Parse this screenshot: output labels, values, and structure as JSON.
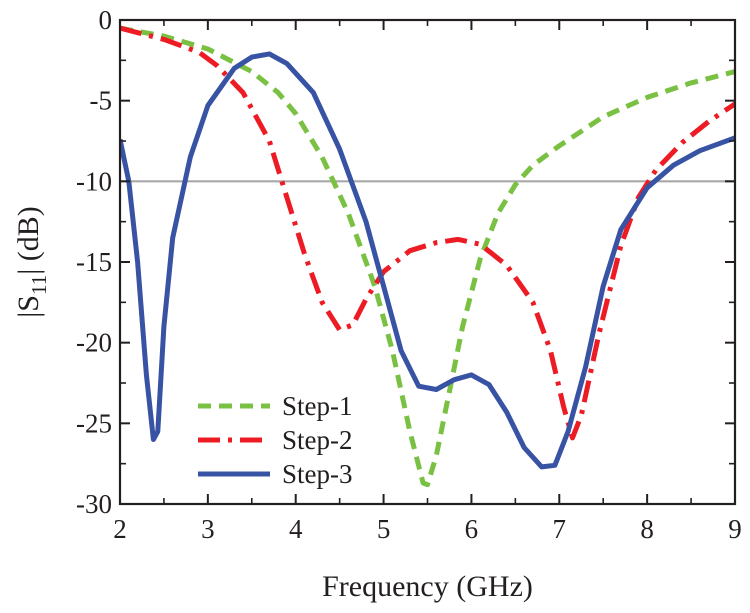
{
  "chart_data": {
    "type": "line",
    "title": "",
    "xlabel": "Frequency (GHz)",
    "ylabel": {
      "prefix": "|S",
      "subscript": "11",
      "suffix": "| (dB)"
    },
    "xlim": [
      2,
      9
    ],
    "ylim": [
      -30,
      0
    ],
    "xticks": [
      2,
      3,
      4,
      5,
      6,
      7,
      8,
      9
    ],
    "yticks": [
      0,
      -5,
      -10,
      -15,
      -20,
      -25,
      -30
    ],
    "xtick_labels": [
      "2",
      "3",
      "4",
      "5",
      "6",
      "7",
      "8",
      "9"
    ],
    "ytick_labels": [
      "0",
      "-5",
      "-10",
      "-15",
      "-20",
      "-25",
      "-30"
    ],
    "reference_line": {
      "y": -10,
      "color": "#a8a8a8"
    },
    "legend_position": "bottom-left",
    "series": [
      {
        "name": "Step-1",
        "color": "#7ac143",
        "style": "dashed",
        "points": [
          [
            2.0,
            -0.5
          ],
          [
            2.5,
            -1.0
          ],
          [
            3.0,
            -1.8
          ],
          [
            3.5,
            -3.2
          ],
          [
            3.8,
            -4.5
          ],
          [
            4.0,
            -5.8
          ],
          [
            4.3,
            -8.5
          ],
          [
            4.6,
            -12.0
          ],
          [
            4.9,
            -16.5
          ],
          [
            5.1,
            -20.5
          ],
          [
            5.3,
            -25.5
          ],
          [
            5.45,
            -28.7
          ],
          [
            5.5,
            -28.8
          ],
          [
            5.6,
            -27.0
          ],
          [
            5.75,
            -23.0
          ],
          [
            5.9,
            -19.0
          ],
          [
            6.1,
            -14.8
          ],
          [
            6.3,
            -12.0
          ],
          [
            6.5,
            -10.2
          ],
          [
            6.7,
            -9.0
          ],
          [
            7.0,
            -7.8
          ],
          [
            7.5,
            -6.0
          ],
          [
            8.0,
            -4.8
          ],
          [
            8.5,
            -3.9
          ],
          [
            9.0,
            -3.2
          ]
        ]
      },
      {
        "name": "Step-2",
        "color": "#ed1c24",
        "style": "dashdot",
        "points": [
          [
            2.0,
            -0.5
          ],
          [
            2.5,
            -1.2
          ],
          [
            2.9,
            -2.0
          ],
          [
            3.1,
            -2.8
          ],
          [
            3.4,
            -4.5
          ],
          [
            3.7,
            -7.5
          ],
          [
            3.9,
            -11.0
          ],
          [
            4.1,
            -14.5
          ],
          [
            4.3,
            -17.5
          ],
          [
            4.5,
            -19.2
          ],
          [
            4.65,
            -18.9
          ],
          [
            4.8,
            -17.3
          ],
          [
            5.0,
            -15.6
          ],
          [
            5.3,
            -14.3
          ],
          [
            5.6,
            -13.8
          ],
          [
            5.85,
            -13.6
          ],
          [
            6.1,
            -13.9
          ],
          [
            6.4,
            -15.2
          ],
          [
            6.7,
            -17.5
          ],
          [
            6.9,
            -20.5
          ],
          [
            7.05,
            -24.0
          ],
          [
            7.15,
            -25.9
          ],
          [
            7.25,
            -24.5
          ],
          [
            7.45,
            -19.5
          ],
          [
            7.7,
            -14.0
          ],
          [
            7.9,
            -11.0
          ],
          [
            8.1,
            -9.3
          ],
          [
            8.4,
            -7.6
          ],
          [
            8.7,
            -6.3
          ],
          [
            9.0,
            -5.2
          ]
        ]
      },
      {
        "name": "Step-3",
        "color": "#3853a4",
        "style": "solid",
        "points": [
          [
            2.0,
            -7.4
          ],
          [
            2.1,
            -10.0
          ],
          [
            2.2,
            -15.0
          ],
          [
            2.3,
            -22.0
          ],
          [
            2.38,
            -26.0
          ],
          [
            2.43,
            -25.5
          ],
          [
            2.5,
            -19.0
          ],
          [
            2.6,
            -13.5
          ],
          [
            2.8,
            -8.5
          ],
          [
            3.0,
            -5.3
          ],
          [
            3.3,
            -3.0
          ],
          [
            3.5,
            -2.3
          ],
          [
            3.7,
            -2.1
          ],
          [
            3.9,
            -2.7
          ],
          [
            4.2,
            -4.5
          ],
          [
            4.5,
            -8.0
          ],
          [
            4.8,
            -12.5
          ],
          [
            5.0,
            -16.5
          ],
          [
            5.2,
            -20.5
          ],
          [
            5.4,
            -22.7
          ],
          [
            5.6,
            -22.9
          ],
          [
            5.8,
            -22.3
          ],
          [
            6.0,
            -22.0
          ],
          [
            6.2,
            -22.6
          ],
          [
            6.4,
            -24.3
          ],
          [
            6.6,
            -26.5
          ],
          [
            6.8,
            -27.7
          ],
          [
            6.95,
            -27.6
          ],
          [
            7.1,
            -25.5
          ],
          [
            7.3,
            -21.5
          ],
          [
            7.5,
            -16.5
          ],
          [
            7.7,
            -13.0
          ],
          [
            8.0,
            -10.4
          ],
          [
            8.3,
            -9.0
          ],
          [
            8.6,
            -8.1
          ],
          [
            9.0,
            -7.3
          ]
        ]
      }
    ]
  }
}
